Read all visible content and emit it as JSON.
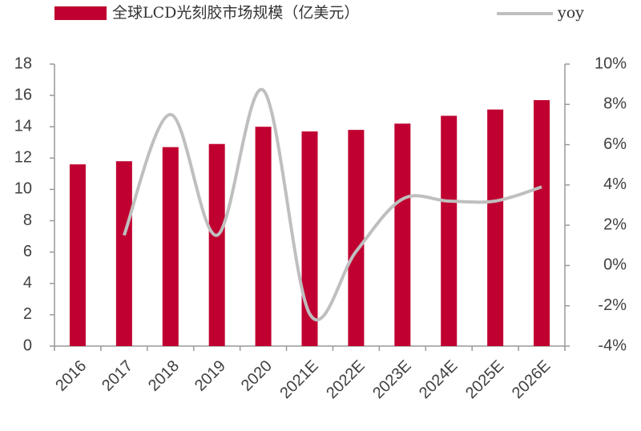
{
  "chart_data": {
    "type": "bar-line",
    "categories": [
      "2016",
      "2017",
      "2018",
      "2019",
      "2020",
      "2021E",
      "2022E",
      "2023E",
      "2024E",
      "2025E",
      "2026E"
    ],
    "series": [
      {
        "name": "全球LCD光刻胶市场规模（亿美元）",
        "type": "bar",
        "color": "#c00030",
        "values": [
          11.6,
          11.8,
          12.7,
          12.9,
          14.0,
          13.7,
          13.8,
          14.2,
          14.7,
          15.1,
          15.7
        ]
      },
      {
        "name": "yoy",
        "type": "line",
        "axis": "y2",
        "color": "#bfbfbf",
        "values": [
          null,
          1.5,
          7.5,
          1.5,
          8.7,
          -2.4,
          0.7,
          3.3,
          3.2,
          3.2,
          3.9
        ]
      }
    ],
    "ylim": [
      0,
      18
    ],
    "yticks": [
      0,
      2,
      4,
      6,
      8,
      10,
      12,
      14,
      16,
      18
    ],
    "y2lim": [
      -4,
      10
    ],
    "y2ticks": [
      {
        "value": -4,
        "label": "-4%"
      },
      {
        "value": -2,
        "label": "-2%"
      },
      {
        "value": 0,
        "label": "0%"
      },
      {
        "value": 2,
        "label": "2%"
      },
      {
        "value": 4,
        "label": "4%"
      },
      {
        "value": 6,
        "label": "6%"
      },
      {
        "value": 8,
        "label": "8%"
      },
      {
        "value": 10,
        "label": "10%"
      }
    ],
    "grid": false
  }
}
